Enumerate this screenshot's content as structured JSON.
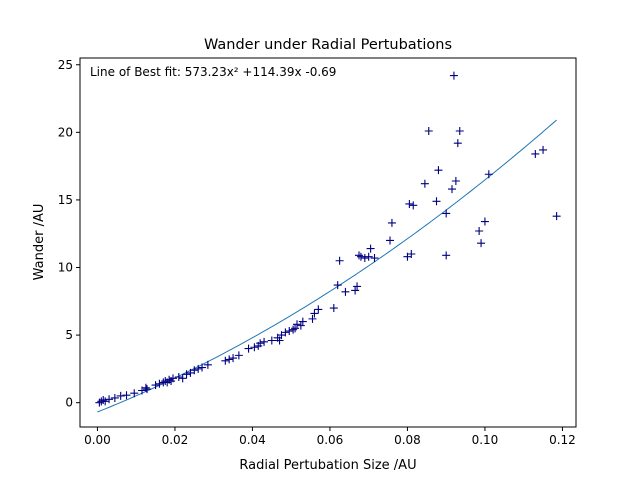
{
  "chart_data": {
    "type": "scatter",
    "title": "Wander under Radial Pertubations",
    "xlabel": "Radial Pertubation Size /AU",
    "ylabel": "Wander /AU",
    "annotation": "Line of Best fit: 573.23x² +114.39x -0.69",
    "xlim": [
      -0.0045,
      0.1235
    ],
    "ylim": [
      -1.8,
      25.5
    ],
    "xticks": [
      0.0,
      0.02,
      0.04,
      0.06,
      0.08,
      0.1,
      0.12
    ],
    "xtick_labels": [
      "0.00",
      "0.02",
      "0.04",
      "0.06",
      "0.08",
      "0.10",
      "0.12"
    ],
    "yticks": [
      0,
      5,
      10,
      15,
      20,
      25
    ],
    "ytick_labels": [
      "0",
      "5",
      "10",
      "15",
      "20",
      "25"
    ],
    "grid": false,
    "marker_color": "#000080",
    "line_color": "#1f77b4",
    "fit": {
      "a": 573.23,
      "b": 114.39,
      "c": -0.69,
      "x_range": [
        0.0,
        0.1185
      ]
    },
    "points": [
      [
        0.0005,
        0.0
      ],
      [
        0.001,
        0.1
      ],
      [
        0.0015,
        0.2
      ],
      [
        0.002,
        0.1
      ],
      [
        0.003,
        0.25
      ],
      [
        0.0045,
        0.35
      ],
      [
        0.006,
        0.5
      ],
      [
        0.0075,
        0.55
      ],
      [
        0.0095,
        0.7
      ],
      [
        0.0115,
        0.9
      ],
      [
        0.0125,
        1.1
      ],
      [
        0.0128,
        1.0
      ],
      [
        0.015,
        1.3
      ],
      [
        0.016,
        1.4
      ],
      [
        0.017,
        1.5
      ],
      [
        0.0175,
        1.6
      ],
      [
        0.018,
        1.5
      ],
      [
        0.0185,
        1.7
      ],
      [
        0.019,
        1.6
      ],
      [
        0.0195,
        1.8
      ],
      [
        0.021,
        1.9
      ],
      [
        0.022,
        1.8
      ],
      [
        0.023,
        2.1
      ],
      [
        0.024,
        2.2
      ],
      [
        0.025,
        2.4
      ],
      [
        0.026,
        2.5
      ],
      [
        0.027,
        2.6
      ],
      [
        0.0285,
        2.8
      ],
      [
        0.033,
        3.1
      ],
      [
        0.034,
        3.2
      ],
      [
        0.035,
        3.3
      ],
      [
        0.0365,
        3.5
      ],
      [
        0.039,
        4.0
      ],
      [
        0.0405,
        4.1
      ],
      [
        0.0415,
        4.2
      ],
      [
        0.042,
        4.4
      ],
      [
        0.043,
        4.5
      ],
      [
        0.045,
        4.6
      ],
      [
        0.0465,
        4.8
      ],
      [
        0.047,
        4.6
      ],
      [
        0.0475,
        5.0
      ],
      [
        0.0485,
        5.2
      ],
      [
        0.0495,
        5.3
      ],
      [
        0.0505,
        5.4
      ],
      [
        0.051,
        5.5
      ],
      [
        0.0515,
        5.8
      ],
      [
        0.0525,
        5.7
      ],
      [
        0.053,
        6.0
      ],
      [
        0.0555,
        6.2
      ],
      [
        0.056,
        6.6
      ],
      [
        0.057,
        6.9
      ],
      [
        0.061,
        7.0
      ],
      [
        0.062,
        8.7
      ],
      [
        0.0625,
        10.5
      ],
      [
        0.064,
        8.2
      ],
      [
        0.0665,
        8.3
      ],
      [
        0.067,
        8.6
      ],
      [
        0.0675,
        10.9
      ],
      [
        0.068,
        10.8
      ],
      [
        0.069,
        10.7
      ],
      [
        0.07,
        10.8
      ],
      [
        0.0705,
        11.4
      ],
      [
        0.0715,
        10.7
      ],
      [
        0.0755,
        12.0
      ],
      [
        0.076,
        13.3
      ],
      [
        0.08,
        10.8
      ],
      [
        0.081,
        11.0
      ],
      [
        0.0805,
        14.7
      ],
      [
        0.0815,
        14.6
      ],
      [
        0.0845,
        16.2
      ],
      [
        0.0855,
        20.1
      ],
      [
        0.0875,
        14.9
      ],
      [
        0.088,
        17.2
      ],
      [
        0.09,
        14.0
      ],
      [
        0.09,
        10.9
      ],
      [
        0.0915,
        15.8
      ],
      [
        0.092,
        24.2
      ],
      [
        0.0925,
        16.4
      ],
      [
        0.093,
        19.2
      ],
      [
        0.0935,
        20.1
      ],
      [
        0.0985,
        12.7
      ],
      [
        0.099,
        11.8
      ],
      [
        0.1,
        13.4
      ],
      [
        0.101,
        16.9
      ],
      [
        0.113,
        18.4
      ],
      [
        0.115,
        18.7
      ],
      [
        0.1185,
        13.8
      ]
    ]
  }
}
